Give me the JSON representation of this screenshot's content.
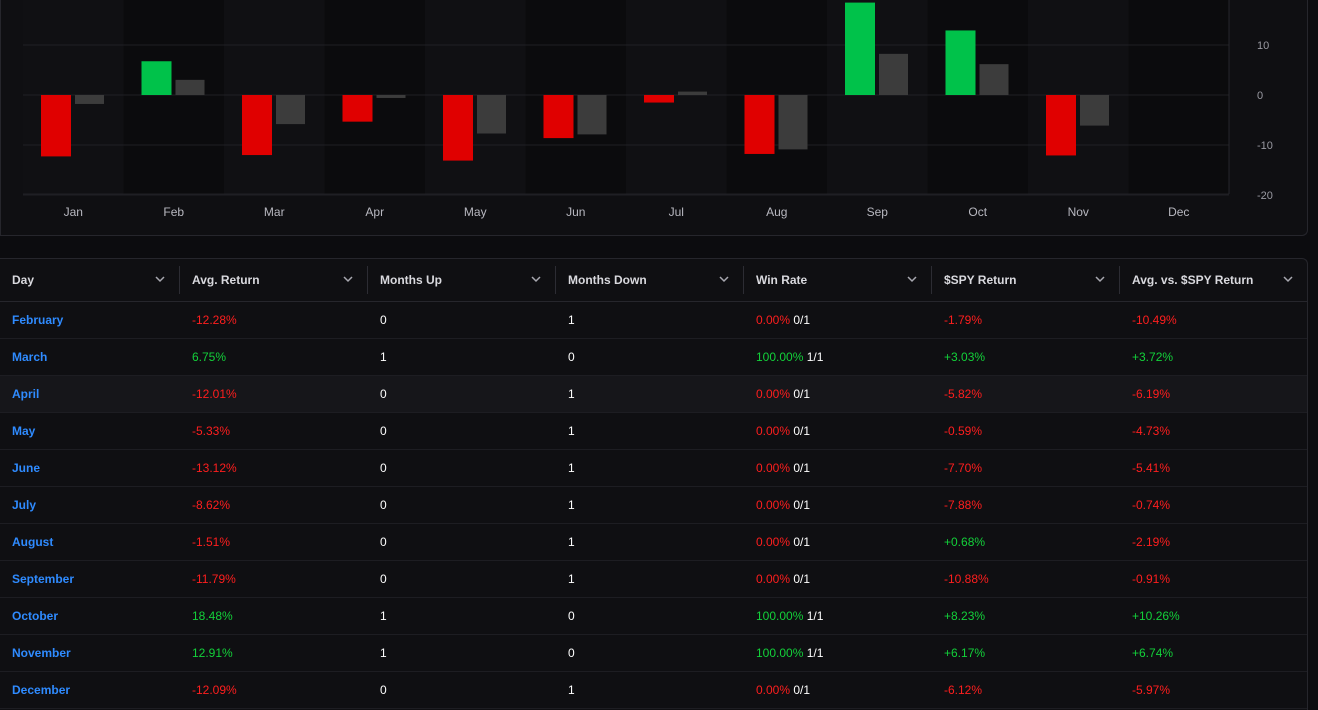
{
  "colors": {
    "positive": "#00c24a",
    "negative": "#e00000",
    "spy": "#3c3c3c",
    "link": "#2f8bff",
    "positive_text": "#13d13a",
    "negative_text": "#ff1e1e"
  },
  "chart_data": {
    "type": "bar",
    "categories": [
      "Jan",
      "Feb",
      "Mar",
      "Apr",
      "May",
      "Jun",
      "Jul",
      "Aug",
      "Sep",
      "Oct",
      "Nov",
      "Dec"
    ],
    "series": [
      {
        "values": [
          -12.28,
          6.75,
          -12.01,
          -5.33,
          -13.12,
          -8.62,
          -1.51,
          -11.79,
          18.48,
          12.91,
          -12.09,
          null
        ]
      },
      {
        "values": [
          -1.79,
          3.03,
          -5.82,
          -0.59,
          -7.7,
          -7.88,
          0.68,
          -10.88,
          8.23,
          6.17,
          -6.12,
          null
        ]
      }
    ],
    "yticks": [
      "10",
      "0",
      "-10",
      "-20"
    ],
    "ylim": [
      -20,
      20
    ],
    "grid": true,
    "axis_position": "right"
  },
  "table": {
    "columns": [
      {
        "label": "Day",
        "icon": "chevron-down-icon"
      },
      {
        "label": "Avg. Return",
        "icon": "chevron-down-icon"
      },
      {
        "label": "Months Up",
        "icon": "chevron-down-icon"
      },
      {
        "label": "Months Down",
        "icon": "chevron-down-icon"
      },
      {
        "label": "Win Rate",
        "icon": "chevron-down-icon"
      },
      {
        "label": "$SPY Return",
        "icon": "chevron-down-icon"
      },
      {
        "label": "Avg. vs. $SPY Return",
        "icon": "chevron-down-icon"
      }
    ],
    "rows": [
      {
        "day": "February",
        "avg": "-12.28%",
        "up": "0",
        "down": "1",
        "win_pct": "0.00%",
        "win_frac": "0/1",
        "spy": "-1.79%",
        "vs": "-10.49%"
      },
      {
        "day": "March",
        "avg": "6.75%",
        "up": "1",
        "down": "0",
        "win_pct": "100.00%",
        "win_frac": "1/1",
        "spy": "+3.03%",
        "vs": "+3.72%"
      },
      {
        "day": "April",
        "avg": "-12.01%",
        "up": "0",
        "down": "1",
        "win_pct": "0.00%",
        "win_frac": "0/1",
        "spy": "-5.82%",
        "vs": "-6.19%"
      },
      {
        "day": "May",
        "avg": "-5.33%",
        "up": "0",
        "down": "1",
        "win_pct": "0.00%",
        "win_frac": "0/1",
        "spy": "-0.59%",
        "vs": "-4.73%"
      },
      {
        "day": "June",
        "avg": "-13.12%",
        "up": "0",
        "down": "1",
        "win_pct": "0.00%",
        "win_frac": "0/1",
        "spy": "-7.70%",
        "vs": "-5.41%"
      },
      {
        "day": "July",
        "avg": "-8.62%",
        "up": "0",
        "down": "1",
        "win_pct": "0.00%",
        "win_frac": "0/1",
        "spy": "-7.88%",
        "vs": "-0.74%"
      },
      {
        "day": "August",
        "avg": "-1.51%",
        "up": "0",
        "down": "1",
        "win_pct": "0.00%",
        "win_frac": "0/1",
        "spy": "+0.68%",
        "vs": "-2.19%"
      },
      {
        "day": "September",
        "avg": "-11.79%",
        "up": "0",
        "down": "1",
        "win_pct": "0.00%",
        "win_frac": "0/1",
        "spy": "-10.88%",
        "vs": "-0.91%"
      },
      {
        "day": "October",
        "avg": "18.48%",
        "up": "1",
        "down": "0",
        "win_pct": "100.00%",
        "win_frac": "1/1",
        "spy": "+8.23%",
        "vs": "+10.26%"
      },
      {
        "day": "November",
        "avg": "12.91%",
        "up": "1",
        "down": "0",
        "win_pct": "100.00%",
        "win_frac": "1/1",
        "spy": "+6.17%",
        "vs": "+6.74%"
      },
      {
        "day": "December",
        "avg": "-12.09%",
        "up": "0",
        "down": "1",
        "win_pct": "0.00%",
        "win_frac": "0/1",
        "spy": "-6.12%",
        "vs": "-5.97%"
      }
    ],
    "highlighted_row": 2
  }
}
